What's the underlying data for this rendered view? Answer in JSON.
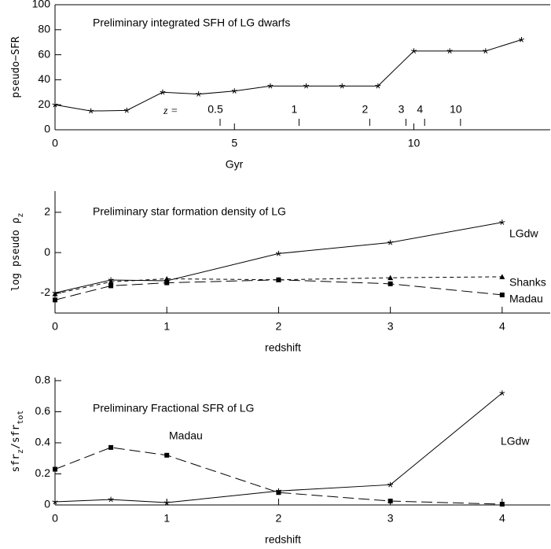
{
  "chart_data": [
    {
      "type": "line",
      "title": "Preliminary integrated SFH of LG dwarfs",
      "xlabel": "Gyr",
      "ylabel_parts": [
        {
          "text": "pseudo−SFR"
        }
      ],
      "xlim": [
        0,
        13.8
      ],
      "xticks": [
        0,
        5,
        10
      ],
      "ylim": [
        0,
        100
      ],
      "yticks": [
        0,
        20,
        40,
        60,
        80,
        100
      ],
      "top_label": "z =",
      "top_ticks": [
        {
          "value": 4.6,
          "label": "0.5"
        },
        {
          "value": 6.8,
          "label": "1"
        },
        {
          "value": 8.77,
          "label": "2"
        },
        {
          "value": 9.78,
          "label": "3"
        },
        {
          "value": 10.3,
          "label": "4"
        },
        {
          "value": 11.3,
          "label": "10"
        }
      ],
      "series": [
        {
          "color": "#000000",
          "marker": "star",
          "dash": "solid",
          "x": [
            0,
            1,
            2,
            3,
            4,
            5,
            6,
            7,
            8,
            9,
            10,
            11,
            12,
            13
          ],
          "values": [
            20,
            15,
            15.5,
            30,
            28.5,
            31,
            35,
            35,
            35,
            35,
            63,
            63,
            63,
            72
          ]
        }
      ]
    },
    {
      "type": "line",
      "title": "Preliminary star formation density of LG",
      "xlabel": "redshift",
      "ylabel_parts": [
        {
          "text": "log  pseudo ρ"
        },
        {
          "text": "z",
          "sub": true
        }
      ],
      "xlim": [
        0,
        4.43
      ],
      "xticks": [
        0,
        1,
        2,
        3,
        4
      ],
      "ylim": [
        -3,
        3.05
      ],
      "yticks": [
        -2,
        0,
        2
      ],
      "series": [
        {
          "name": "LGdw",
          "color": "#000000",
          "marker": "star",
          "dash": "solid",
          "x": [
            0,
            0.5,
            1,
            2,
            3,
            4
          ],
          "values": [
            -2.0,
            -1.36,
            -1.4,
            -0.05,
            0.5,
            1.5
          ]
        },
        {
          "name": "Shanks",
          "color": "#000000",
          "marker": "triangle",
          "dash": "short",
          "x": [
            0,
            0.5,
            1,
            2,
            3,
            4
          ],
          "values": [
            -2.05,
            -1.45,
            -1.3,
            -1.35,
            -1.25,
            -1.2
          ]
        },
        {
          "name": "Madau",
          "color": "#000000",
          "marker": "square",
          "dash": "long",
          "x": [
            0,
            0.5,
            1,
            2,
            3,
            4
          ],
          "values": [
            -2.35,
            -1.65,
            -1.5,
            -1.35,
            -1.55,
            -2.1
          ]
        }
      ]
    },
    {
      "type": "line",
      "title": "Preliminary Fractional SFR of LG",
      "xlabel": "redshift",
      "ylabel_parts": [
        {
          "text": "sfr"
        },
        {
          "text": "z",
          "sub": true
        },
        {
          "text": "/sfr"
        },
        {
          "text": "tot",
          "sub": true
        }
      ],
      "xlim": [
        0,
        4.43
      ],
      "xticks": [
        0,
        1,
        2,
        3,
        4
      ],
      "ylim": [
        0,
        0.82
      ],
      "yticks": [
        0,
        0.2,
        0.4,
        0.6,
        0.8
      ],
      "series": [
        {
          "name": "LGdw",
          "color": "#000000",
          "marker": "star",
          "dash": "solid",
          "x": [
            0,
            0.5,
            1,
            2,
            3,
            4
          ],
          "values": [
            0.02,
            0.035,
            0.015,
            0.09,
            0.13,
            0.72
          ]
        },
        {
          "name": "Madau",
          "color": "#000000",
          "marker": "square",
          "dash": "long",
          "x": [
            0,
            0.5,
            1,
            2,
            3,
            4
          ],
          "values": [
            0.23,
            0.37,
            0.32,
            0.08,
            0.025,
            0.005
          ]
        }
      ]
    }
  ]
}
